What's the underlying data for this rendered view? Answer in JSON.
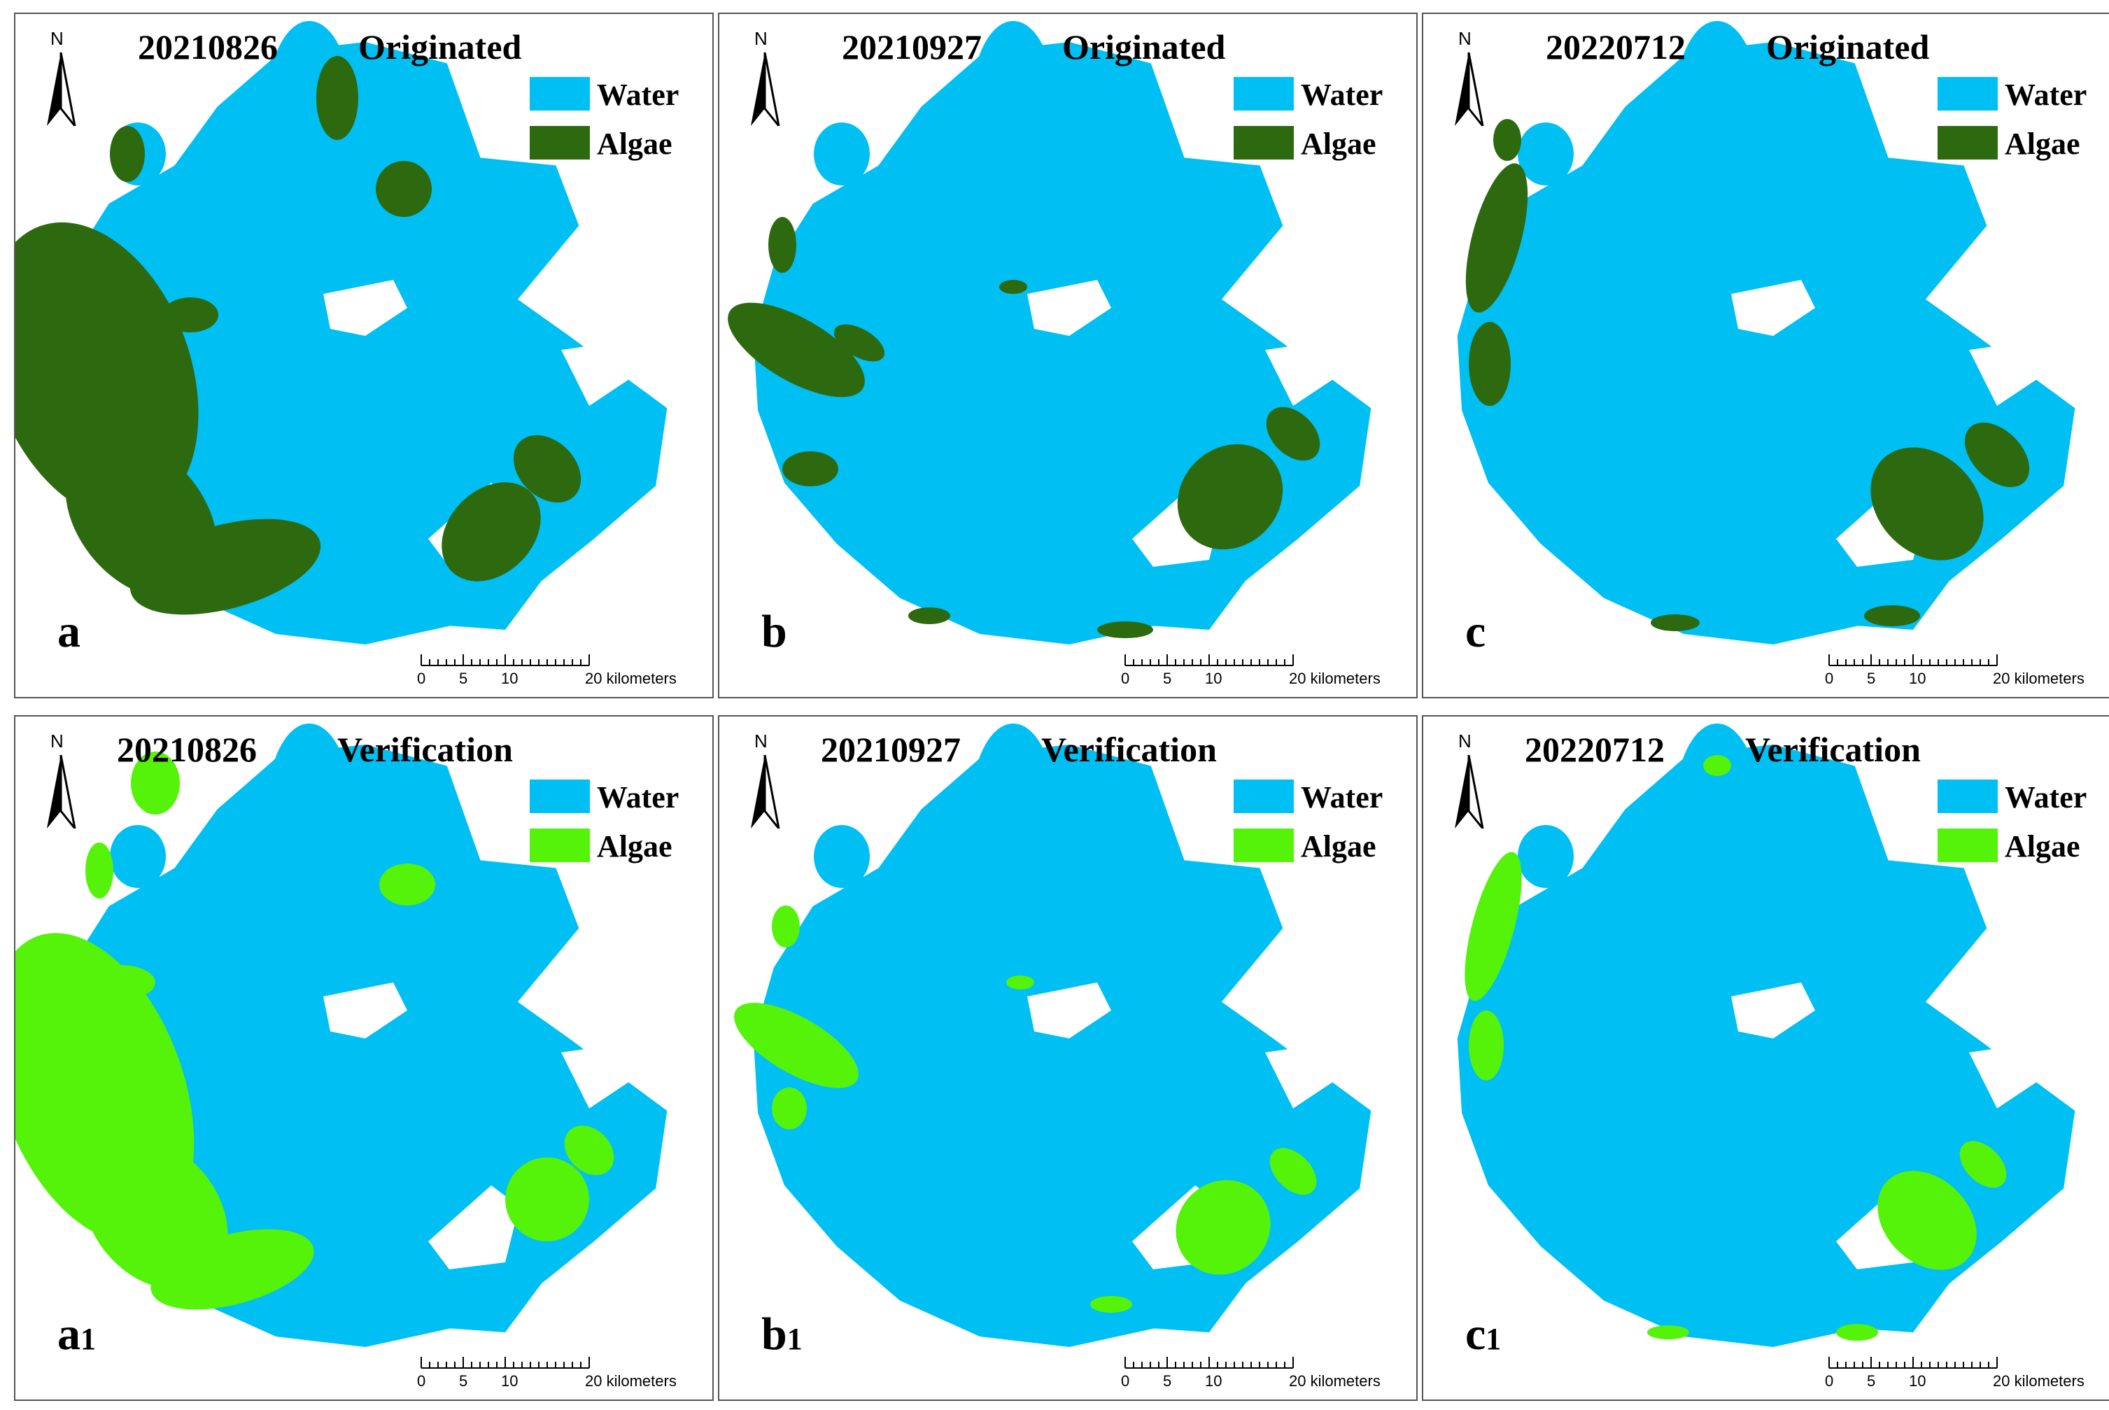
{
  "colors": {
    "water": "#00BFF3",
    "algae_originated": "#2D6A0F",
    "algae_verification": "#55F20A",
    "border": "#555555"
  },
  "common": {
    "north_label": "N",
    "north_icon": "north-arrow-icon",
    "legend_water": "Water",
    "legend_algae": "Algae",
    "scale": {
      "ticks": [
        "0",
        "5",
        "10",
        "20 kilometers"
      ]
    }
  },
  "panels": [
    {
      "id": "a",
      "date": "20210826",
      "kind": "Originated",
      "letter": "a",
      "sub": "",
      "style": "originated"
    },
    {
      "id": "b",
      "date": "20210927",
      "kind": "Originated",
      "letter": "b",
      "sub": "",
      "style": "originated"
    },
    {
      "id": "c",
      "date": "20220712",
      "kind": "Originated",
      "letter": "c",
      "sub": "",
      "style": "originated"
    },
    {
      "id": "a1",
      "date": "20210826",
      "kind": "Verification",
      "letter": "a",
      "sub": "1",
      "style": "verification"
    },
    {
      "id": "b1",
      "date": "20210927",
      "kind": "Verification",
      "letter": "b",
      "sub": "1",
      "style": "verification"
    },
    {
      "id": "c1",
      "date": "20220712",
      "kind": "Verification",
      "letter": "c",
      "sub": "1",
      "style": "verification"
    }
  ]
}
